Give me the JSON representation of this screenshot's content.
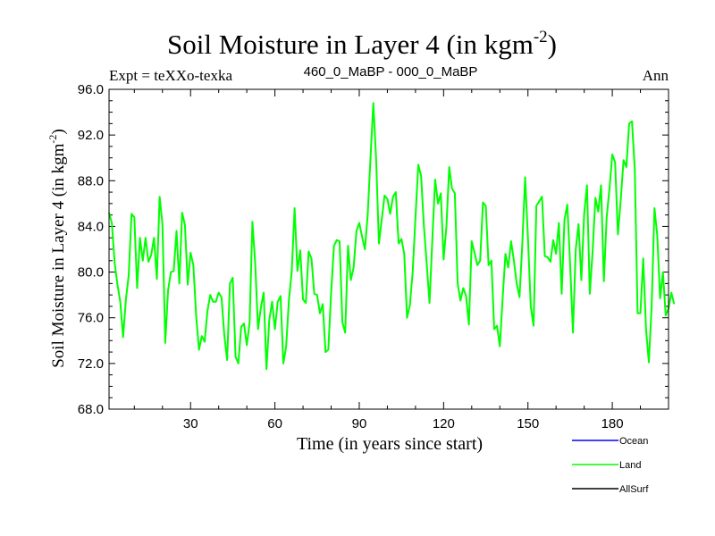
{
  "chart_data": {
    "type": "line",
    "title": "Soil Moisture in Layer 4 (in kgm",
    "title_sup": "-2",
    "title_close": ")",
    "subtitle_left": "Expt = teXXo-texka",
    "subtitle_center": "460_0_MaBP - 000_0_MaBP",
    "subtitle_right": "Ann",
    "xlabel": "Time (in years since start)",
    "ylabel": "Soil Moisture in Layer 4 (in kgm",
    "ylabel_sup": "-2",
    "ylabel_close": ")",
    "xlim": [
      1,
      200
    ],
    "ylim": [
      68,
      96
    ],
    "xticks": [
      30,
      60,
      90,
      120,
      150,
      180
    ],
    "yticks": [
      68,
      72,
      76,
      80,
      84,
      88,
      92,
      96
    ],
    "ytick_labels": [
      "68.0",
      "72.0",
      "76.0",
      "80.0",
      "84.0",
      "88.0",
      "92.0",
      "96.0"
    ],
    "legend": [
      {
        "name": "Ocean",
        "color": "#0000ff"
      },
      {
        "name": "Land",
        "color": "#00ff00"
      },
      {
        "name": "AllSurf",
        "color": "#000000"
      }
    ],
    "series": [
      {
        "name": "Land",
        "color": "#00ff00",
        "x_start": 1,
        "values": [
          85.2,
          84.3,
          80.8,
          78.9,
          77.4,
          74.3,
          77.6,
          79.7,
          85.1,
          84.8,
          78.6,
          83.0,
          81.0,
          83.0,
          80.9,
          81.5,
          83.0,
          79.4,
          86.6,
          84.2,
          73.8,
          78.4,
          80.0,
          80.1,
          83.6,
          79.0,
          85.2,
          84.1,
          78.9,
          81.7,
          80.6,
          76.1,
          73.2,
          74.4,
          73.9,
          76.6,
          78.0,
          77.4,
          77.4,
          78.2,
          77.8,
          74.5,
          72.3,
          79.0,
          79.5,
          72.6,
          72.0,
          75.2,
          75.5,
          73.6,
          75.6,
          84.4,
          80.7,
          75.0,
          76.9,
          78.2,
          71.5,
          75.8,
          77.4,
          75.0,
          77.4,
          77.9,
          72.0,
          73.5,
          77.6,
          80.1,
          85.6,
          80.1,
          81.9,
          77.6,
          77.3,
          81.8,
          81.2,
          78.1,
          78.0,
          76.4,
          77.2,
          73.0,
          73.2,
          78.2,
          82.3,
          82.8,
          82.7,
          75.6,
          74.7,
          82.3,
          79.3,
          80.4,
          83.6,
          84.3,
          83.1,
          82.0,
          85.0,
          90.0,
          94.8,
          89.9,
          82.5,
          84.6,
          86.7,
          86.4,
          85.1,
          86.6,
          87.0,
          82.5,
          82.9,
          81.6,
          76.0,
          77.1,
          80.0,
          84.8,
          89.4,
          88.4,
          84.0,
          80.7,
          77.3,
          82.9,
          88.1,
          86.0,
          86.9,
          81.1,
          84.0,
          89.2,
          87.3,
          86.9,
          79.0,
          77.5,
          78.6,
          77.9,
          75.4,
          82.7,
          81.7,
          80.6,
          81.0,
          86.1,
          85.8,
          80.6,
          81.0,
          75.0,
          75.3,
          73.5,
          77.7,
          81.6,
          80.4,
          82.7,
          81.0,
          79.0,
          77.8,
          82.5,
          88.3,
          83.0,
          77.0,
          75.3,
          85.8,
          86.2,
          86.6,
          81.4,
          81.3,
          80.9,
          82.8,
          81.6,
          84.3,
          78.1,
          84.6,
          85.9,
          80.7,
          74.7,
          82.0,
          84.2,
          79.3,
          85.1,
          87.6,
          78.1,
          81.8,
          86.5,
          85.3,
          87.6,
          79.2,
          84.8,
          87.3,
          90.3,
          89.6,
          83.3,
          86.3,
          89.8,
          89.2,
          93.0,
          93.2,
          89.0,
          76.4,
          76.4,
          81.2,
          75.0,
          72.1,
          77.0,
          85.6,
          83.2,
          77.7,
          80.0,
          76.2,
          76.8,
          78.2,
          77.2
        ]
      }
    ]
  }
}
